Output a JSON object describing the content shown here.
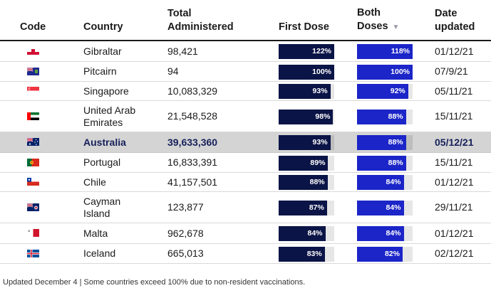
{
  "chart_data": {
    "type": "table",
    "columns": [
      {
        "key": "code",
        "label": "Code"
      },
      {
        "key": "country",
        "label": "Country"
      },
      {
        "key": "total",
        "label": "Total\nAdministered"
      },
      {
        "key": "first",
        "label": "First Dose"
      },
      {
        "key": "both",
        "label": "Both\nDoses",
        "sort": "descending"
      },
      {
        "key": "date",
        "label": "Date\nupdated"
      }
    ],
    "rows": [
      {
        "flag": "gibraltar-flag",
        "country": "Gibraltar",
        "total": "98,421",
        "first": 122,
        "first_label": "122%",
        "both": 118,
        "both_label": "118%",
        "date": "01/12/21"
      },
      {
        "flag": "pitcairn-flag",
        "country": "Pitcairn",
        "total": "94",
        "first": 100,
        "first_label": "100%",
        "both": 100,
        "both_label": "100%",
        "date": "07/9/21"
      },
      {
        "flag": "singapore-flag",
        "country": "Singapore",
        "total": "10,083,329",
        "first": 93,
        "first_label": "93%",
        "both": 92,
        "both_label": "92%",
        "date": "05/11/21"
      },
      {
        "flag": "uae-flag",
        "country": "United Arab\nEmirates",
        "total": "21,548,528",
        "first": 98,
        "first_label": "98%",
        "both": 88,
        "both_label": "88%",
        "date": "15/11/21"
      },
      {
        "flag": "australia-flag",
        "country": "Australia",
        "total": "39,633,360",
        "first": 93,
        "first_label": "93%",
        "both": 88,
        "both_label": "88%",
        "date": "05/12/21",
        "highlight": true
      },
      {
        "flag": "portugal-flag",
        "country": "Portugal",
        "total": "16,833,391",
        "first": 89,
        "first_label": "89%",
        "both": 88,
        "both_label": "88%",
        "date": "15/11/21"
      },
      {
        "flag": "chile-flag",
        "country": "Chile",
        "total": "41,157,501",
        "first": 88,
        "first_label": "88%",
        "both": 84,
        "both_label": "84%",
        "date": "01/12/21"
      },
      {
        "flag": "cayman-flag",
        "country": "Cayman\nIsland",
        "total": "123,877",
        "first": 87,
        "first_label": "87%",
        "both": 84,
        "both_label": "84%",
        "date": "29/11/21"
      },
      {
        "flag": "malta-flag",
        "country": "Malta",
        "total": "962,678",
        "first": 84,
        "first_label": "84%",
        "both": 84,
        "both_label": "84%",
        "date": "01/12/21"
      },
      {
        "flag": "iceland-flag",
        "country": "Iceland",
        "total": "665,013",
        "first": 83,
        "first_label": "83%",
        "both": 82,
        "both_label": "82%",
        "date": "02/12/21"
      }
    ],
    "bar_max": 122,
    "colors": {
      "first_dose": "#0b1446",
      "both_doses": "#1b25c8",
      "track": "#e6e6e6",
      "highlight_row": "#d4d4d4"
    }
  },
  "footer": "Updated December 4 | Some countries exceed 100% due to non-resident vaccinations."
}
